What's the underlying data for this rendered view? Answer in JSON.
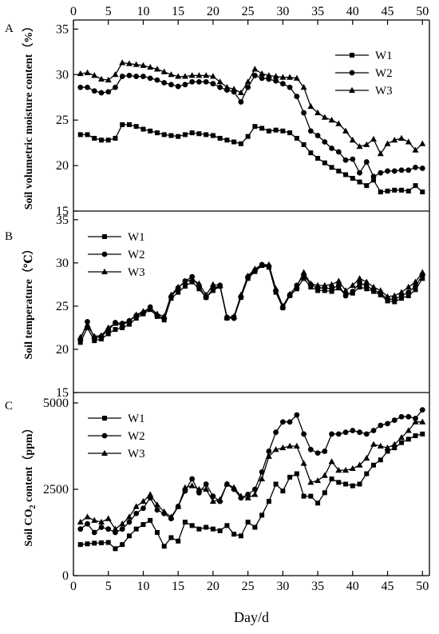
{
  "figure": {
    "xlabel": "Day/d",
    "top_axis_ticks": [
      "0",
      "5",
      "10",
      "15",
      "20",
      "25",
      "30",
      "35",
      "40",
      "45",
      "50"
    ]
  },
  "chart_data": [
    {
      "type": "line",
      "panel_label": "A",
      "title": "",
      "xlabel": "Day/d",
      "ylabel": "Soil volumetric moisture content（%）",
      "xlim": [
        0,
        51
      ],
      "ylim": [
        15,
        36
      ],
      "x_ticks": [
        "0",
        "5",
        "10",
        "15",
        "20",
        "25",
        "30",
        "35",
        "40",
        "45",
        "50"
      ],
      "y_ticks": [
        "15",
        "20",
        "25",
        "30",
        "35"
      ],
      "legend_position": "top-right",
      "x": [
        1,
        2,
        3,
        4,
        5,
        6,
        7,
        8,
        9,
        10,
        11,
        12,
        13,
        14,
        15,
        16,
        17,
        18,
        19,
        20,
        21,
        22,
        23,
        24,
        25,
        26,
        27,
        28,
        29,
        30,
        31,
        32,
        33,
        34,
        35,
        36,
        37,
        38,
        39,
        40,
        41,
        42,
        43,
        44,
        45,
        46,
        47,
        48,
        49,
        50
      ],
      "series": [
        {
          "name": "W1",
          "marker": "square",
          "values": [
            23.4,
            23.4,
            23.0,
            22.8,
            22.8,
            23.0,
            24.5,
            24.5,
            24.3,
            24.0,
            23.8,
            23.6,
            23.4,
            23.3,
            23.2,
            23.4,
            23.6,
            23.5,
            23.4,
            23.3,
            23.0,
            22.8,
            22.6,
            22.4,
            23.2,
            24.3,
            24.1,
            23.8,
            23.9,
            23.8,
            23.6,
            23.0,
            22.3,
            21.4,
            20.8,
            20.3,
            19.8,
            19.4,
            19.0,
            18.6,
            18.2,
            17.8,
            18.4,
            17.1,
            17.2,
            17.3,
            17.3,
            17.2,
            17.8,
            17.1
          ]
        },
        {
          "name": "W2",
          "marker": "circle",
          "values": [
            28.6,
            28.6,
            28.2,
            28.0,
            28.1,
            28.6,
            29.8,
            29.9,
            29.8,
            29.8,
            29.6,
            29.4,
            29.1,
            28.9,
            28.7,
            28.9,
            29.2,
            29.2,
            29.2,
            29.0,
            28.6,
            28.3,
            28.1,
            27.0,
            28.6,
            29.9,
            29.6,
            29.5,
            29.3,
            29.0,
            28.6,
            27.6,
            25.8,
            23.8,
            23.3,
            22.6,
            21.9,
            21.5,
            20.6,
            20.7,
            19.2,
            20.4,
            18.8,
            19.2,
            19.4,
            19.4,
            19.5,
            19.5,
            19.8,
            19.7
          ]
        },
        {
          "name": "W3",
          "marker": "triangle",
          "values": [
            30.1,
            30.2,
            29.9,
            29.5,
            29.4,
            30.0,
            31.3,
            31.2,
            31.1,
            31.0,
            30.8,
            30.6,
            30.3,
            30.0,
            29.8,
            29.8,
            29.9,
            29.9,
            29.9,
            29.8,
            29.2,
            28.6,
            28.4,
            28.0,
            29.2,
            30.6,
            30.1,
            29.9,
            29.8,
            29.7,
            29.7,
            29.6,
            28.6,
            26.5,
            25.8,
            25.3,
            25.0,
            24.6,
            23.8,
            22.8,
            22.1,
            22.3,
            22.9,
            21.3,
            22.4,
            22.8,
            23.0,
            22.6,
            21.7,
            22.4
          ]
        }
      ]
    },
    {
      "type": "line",
      "panel_label": "B",
      "title": "",
      "xlabel": "Day/d",
      "ylabel": "Soil temperature（℃）",
      "xlim": [
        0,
        51
      ],
      "ylim": [
        15,
        36
      ],
      "y_ticks": [
        "15",
        "20",
        "25",
        "30",
        "35"
      ],
      "legend_position": "top-left",
      "x": [
        1,
        2,
        3,
        4,
        5,
        6,
        7,
        8,
        9,
        10,
        11,
        12,
        13,
        14,
        15,
        16,
        17,
        18,
        19,
        20,
        21,
        22,
        23,
        24,
        25,
        26,
        27,
        28,
        29,
        30,
        31,
        32,
        33,
        34,
        35,
        36,
        37,
        38,
        39,
        40,
        41,
        42,
        43,
        44,
        45,
        46,
        47,
        48,
        49,
        50
      ],
      "series": [
        {
          "name": "W1",
          "marker": "square",
          "values": [
            20.8,
            22.5,
            21.0,
            21.2,
            21.8,
            22.3,
            22.5,
            22.9,
            23.6,
            24.1,
            24.6,
            23.8,
            23.4,
            25.9,
            26.6,
            27.3,
            27.8,
            27.0,
            26.0,
            26.8,
            27.3,
            23.6,
            23.7,
            26.0,
            28.2,
            29.0,
            29.7,
            29.5,
            26.6,
            24.8,
            26.2,
            27.0,
            28.2,
            27.2,
            26.8,
            26.8,
            26.7,
            27.1,
            26.3,
            26.5,
            27.2,
            27.0,
            26.7,
            26.3,
            25.6,
            25.5,
            25.9,
            26.2,
            26.9,
            28.2
          ]
        },
        {
          "name": "W2",
          "marker": "circle",
          "values": [
            21.1,
            23.2,
            21.3,
            21.5,
            22.2,
            23.1,
            23.0,
            23.3,
            23.9,
            24.2,
            24.9,
            23.9,
            23.6,
            26.1,
            27.1,
            27.9,
            28.4,
            27.2,
            26.0,
            27.0,
            27.4,
            23.7,
            23.6,
            26.1,
            28.4,
            29.1,
            29.8,
            29.6,
            26.8,
            24.9,
            26.3,
            27.4,
            28.6,
            27.5,
            27.1,
            27.1,
            27.0,
            27.4,
            26.2,
            26.7,
            27.7,
            27.3,
            26.9,
            26.5,
            25.8,
            25.8,
            26.2,
            26.6,
            27.3,
            28.6
          ]
        },
        {
          "name": "W3",
          "marker": "triangle",
          "values": [
            21.4,
            22.8,
            21.5,
            21.6,
            22.5,
            23.0,
            22.8,
            23.3,
            24.0,
            24.4,
            24.8,
            24.1,
            23.8,
            26.3,
            27.2,
            27.8,
            28.1,
            27.6,
            26.3,
            27.5,
            27.4,
            23.7,
            23.8,
            26.3,
            28.5,
            29.3,
            29.8,
            29.8,
            27.0,
            25.0,
            26.4,
            27.3,
            28.9,
            27.6,
            27.4,
            27.4,
            27.5,
            27.9,
            26.8,
            27.4,
            28.2,
            27.8,
            27.2,
            26.8,
            26.1,
            26.2,
            26.6,
            27.2,
            27.8,
            28.9
          ]
        }
      ]
    },
    {
      "type": "line",
      "panel_label": "C",
      "title": "",
      "xlabel": "Day/d",
      "ylabel": "Soil CO2 content（ppm）",
      "ylabel_parts": [
        "Soil CO",
        "2",
        " content（ppm）"
      ],
      "xlim": [
        0,
        51
      ],
      "ylim": [
        0,
        5300
      ],
      "x_ticks": [
        "0",
        "5",
        "10",
        "15",
        "20",
        "25",
        "30",
        "35",
        "40",
        "45",
        "50"
      ],
      "y_ticks": [
        "0",
        "2500",
        "5000"
      ],
      "legend_position": "top-left",
      "x": [
        1,
        2,
        3,
        4,
        5,
        6,
        7,
        8,
        9,
        10,
        11,
        12,
        13,
        14,
        15,
        16,
        17,
        18,
        19,
        20,
        21,
        22,
        23,
        24,
        25,
        26,
        27,
        28,
        29,
        30,
        31,
        32,
        33,
        34,
        35,
        36,
        37,
        38,
        39,
        40,
        41,
        42,
        43,
        44,
        45,
        46,
        47,
        48,
        49,
        50
      ],
      "series": [
        {
          "name": "W1",
          "marker": "square",
          "values": [
            900,
            920,
            940,
            950,
            960,
            780,
            900,
            1150,
            1350,
            1480,
            1600,
            1250,
            850,
            1100,
            1000,
            1550,
            1450,
            1350,
            1400,
            1350,
            1300,
            1450,
            1200,
            1150,
            1550,
            1400,
            1750,
            2150,
            2650,
            2450,
            2850,
            2950,
            2300,
            2300,
            2100,
            2400,
            2800,
            2700,
            2650,
            2600,
            2650,
            2950,
            3200,
            3350,
            3600,
            3700,
            3850,
            3950,
            4050,
            4100
          ]
        },
        {
          "name": "W2",
          "marker": "circle",
          "values": [
            1350,
            1500,
            1250,
            1400,
            1350,
            1250,
            1350,
            1550,
            1800,
            1950,
            2250,
            1900,
            1800,
            1650,
            2000,
            2450,
            2800,
            2400,
            2650,
            2300,
            2150,
            2650,
            2500,
            2250,
            2350,
            2500,
            3000,
            3600,
            4150,
            4450,
            4450,
            4650,
            4100,
            3650,
            3550,
            3600,
            4100,
            4100,
            4150,
            4200,
            4150,
            4100,
            4200,
            4350,
            4400,
            4500,
            4600,
            4600,
            4550,
            4800
          ]
        },
        {
          "name": "W3",
          "marker": "triangle",
          "values": [
            1550,
            1700,
            1600,
            1550,
            1650,
            1350,
            1500,
            1700,
            2000,
            2150,
            2350,
            2050,
            1850,
            1700,
            2000,
            2550,
            2600,
            2500,
            2500,
            2150,
            2200,
            2650,
            2550,
            2300,
            2250,
            2350,
            2800,
            3450,
            3650,
            3700,
            3750,
            3750,
            3250,
            2700,
            2750,
            2900,
            3300,
            3050,
            3050,
            3100,
            3200,
            3400,
            3800,
            3750,
            3700,
            3800,
            4000,
            4200,
            4450,
            4450
          ]
        }
      ]
    }
  ]
}
